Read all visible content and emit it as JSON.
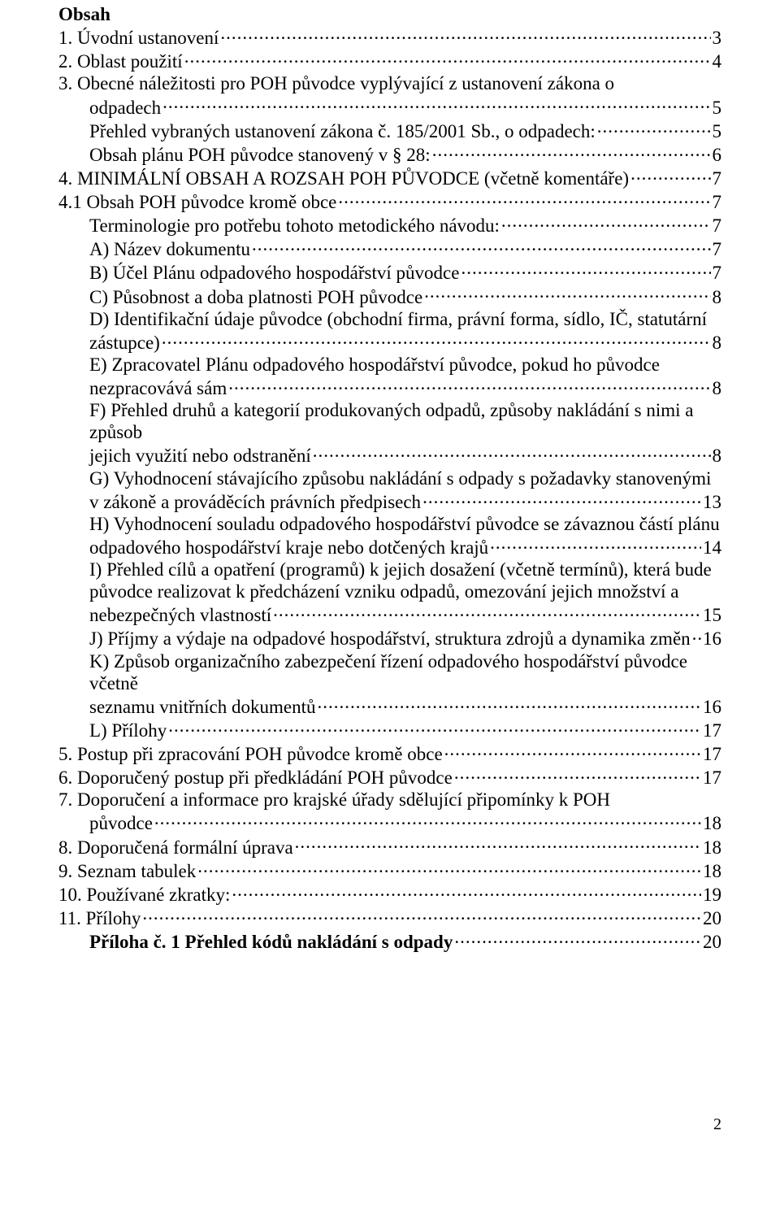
{
  "heading": "Obsah",
  "page_number": "2",
  "colors": {
    "text": "#000000",
    "background": "#ffffff"
  },
  "font": {
    "family": "Times New Roman",
    "base_size_pt": 12
  },
  "entries": [
    {
      "type": "l1",
      "text": "1. Úvodní ustanovení",
      "page": "3"
    },
    {
      "type": "l1",
      "text": "2. Oblast použití",
      "page": "4"
    },
    {
      "type": "l1w",
      "first": "3. Obecné náležitosti pro POH původce vyplývající z ustanovení zákona o",
      "last": "odpadech",
      "page": "5"
    },
    {
      "type": "l2",
      "text": "Přehled vybraných ustanovení zákona č. 185/2001 Sb., o odpadech:",
      "page": "5"
    },
    {
      "type": "l2",
      "text": "Obsah plánu POH původce stanovený v § 28:",
      "page": "6"
    },
    {
      "type": "l1",
      "text": "4. MINIMÁLNÍ OBSAH A ROZSAH POH PŮVODCE (včetně komentáře)",
      "page": "7"
    },
    {
      "type": "l1",
      "text": "4.1 Obsah POH původce kromě obce",
      "page": "7"
    },
    {
      "type": "l2",
      "text": "Terminologie pro potřebu tohoto metodického návodu:",
      "page": "7"
    },
    {
      "type": "l2",
      "text": "A) Název dokumentu",
      "page": "7"
    },
    {
      "type": "l2",
      "text": "B) Účel Plánu odpadového hospodářství původce",
      "page": "7"
    },
    {
      "type": "l2",
      "text": "C) Působnost a doba platnosti POH původce",
      "page": "8"
    },
    {
      "type": "l2w",
      "lines": [
        "D) Identifikační údaje původce (obchodní firma, právní forma, sídlo, IČ, statutární"
      ],
      "last": "zástupce)",
      "page": "8"
    },
    {
      "type": "l2w",
      "lines": [
        "E) Zpracovatel Plánu odpadového hospodářství původce, pokud ho původce"
      ],
      "last": "nezpracovává sám",
      "page": "8"
    },
    {
      "type": "l2w",
      "lines": [
        "F) Přehled druhů a kategorií produkovaných odpadů, způsoby nakládání s nimi a způsob"
      ],
      "last": "jejich využití nebo odstranění",
      "page": "8"
    },
    {
      "type": "l2w",
      "lines": [
        "G) Vyhodnocení stávajícího způsobu nakládání s odpady s požadavky stanovenými"
      ],
      "last": "v zákoně a prováděcích právních předpisech",
      "page": "13"
    },
    {
      "type": "l2w",
      "lines": [
        "H) Vyhodnocení souladu odpadového hospodářství původce se závaznou částí plánu"
      ],
      "last": "odpadového hospodářství kraje nebo dotčených krajů",
      "page": "14"
    },
    {
      "type": "l2w",
      "lines": [
        "I) Přehled cílů a opatření (programů) k jejich dosažení (včetně termínů), která bude",
        "původce realizovat k předcházení vzniku odpadů, omezování jejich množství a"
      ],
      "last": "nebezpečných vlastností",
      "page": "15"
    },
    {
      "type": "l2",
      "text": "J) Příjmy a výdaje na odpadové hospodářství, struktura zdrojů a dynamika změn",
      "page": "16"
    },
    {
      "type": "l2w",
      "lines": [
        "K) Způsob organizačního zabezpečení řízení odpadového hospodářství původce včetně"
      ],
      "last": "seznamu vnitřních dokumentů",
      "page": "16"
    },
    {
      "type": "l2",
      "text": "L) Přílohy",
      "page": "17"
    },
    {
      "type": "l1",
      "text": "5. Postup při zpracování POH původce kromě obce",
      "page": "17"
    },
    {
      "type": "l1",
      "text": "6. Doporučený postup při předkládání POH původce",
      "page": "17"
    },
    {
      "type": "l1w",
      "first": "7. Doporučení a informace pro krajské úřady sdělující připomínky k POH",
      "last": "původce",
      "page": "18"
    },
    {
      "type": "l1",
      "text": "8. Doporučená formální úprava",
      "page": "18"
    },
    {
      "type": "l1",
      "text": "9. Seznam tabulek",
      "page": "18"
    },
    {
      "type": "l1",
      "text": "10. Používané zkratky:",
      "page": "19"
    },
    {
      "type": "l1",
      "text": "11. Přílohy",
      "page": "20"
    },
    {
      "type": "l2b",
      "text": "Příloha č. 1 Přehled kódů nakládání s odpady",
      "page": "20"
    }
  ]
}
